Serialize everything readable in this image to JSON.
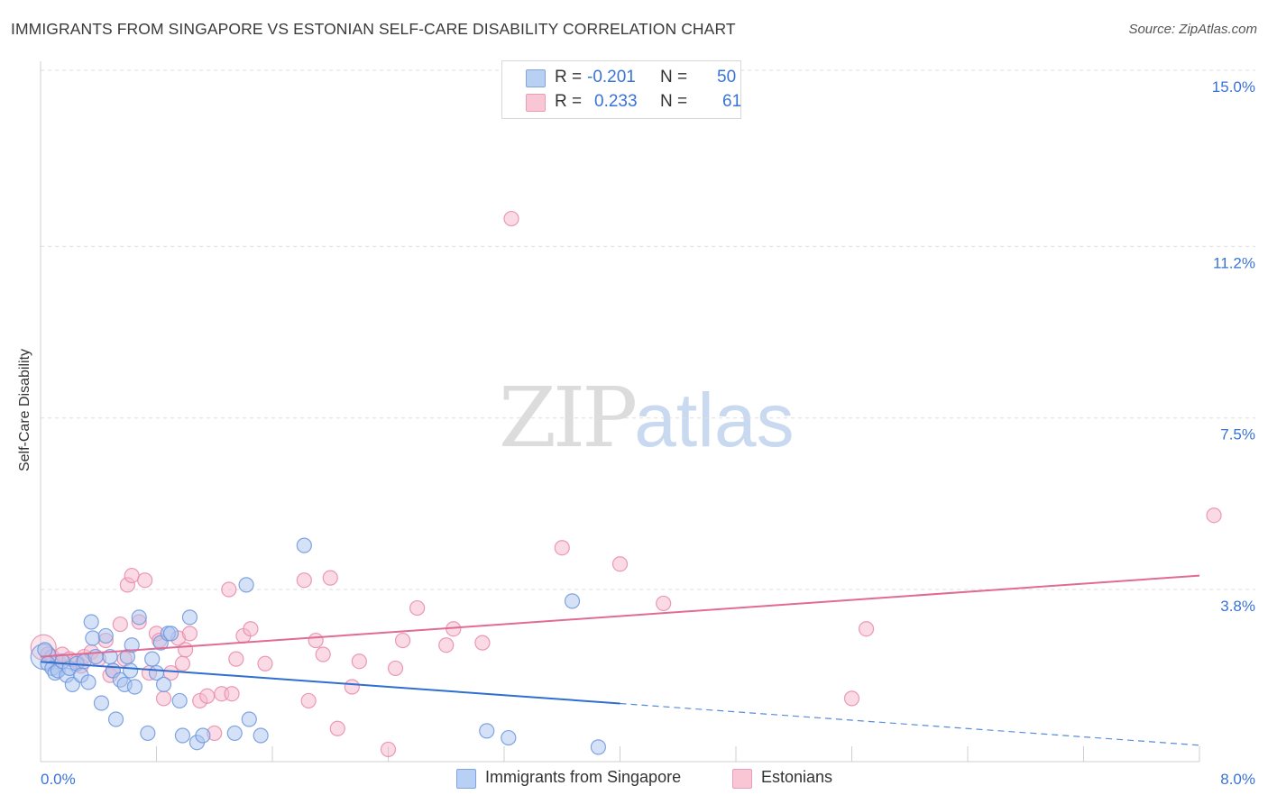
{
  "header": {
    "title": "IMMIGRANTS FROM SINGAPORE VS ESTONIAN SELF-CARE DISABILITY CORRELATION CHART",
    "source": "Source: ZipAtlas.com"
  },
  "legend": {
    "r_label": "R =",
    "n_label": "N =",
    "series1": {
      "r": "-0.201",
      "n": "50"
    },
    "series2": {
      "r": "0.233",
      "n": "61"
    }
  },
  "watermark": {
    "zip": "ZIP",
    "atlas": "atlas"
  },
  "colors": {
    "blue_fill": "#a9c4f0",
    "blue_stroke": "#6c97dc",
    "blue_line": "#2e6fd0",
    "pink_fill": "#f6b8cc",
    "pink_stroke": "#e88aa8",
    "pink_line": "#e06b96",
    "tick_label": "#3a73d6",
    "grid": "#dedede"
  },
  "chart_data": {
    "type": "scatter",
    "title": "IMMIGRANTS FROM SINGAPORE VS ESTONIAN SELF-CARE DISABILITY CORRELATION CHART",
    "xlabel": "",
    "ylabel": "Self-Care Disability",
    "xlim": [
      0,
      8
    ],
    "ylim": [
      0,
      15.5
    ],
    "x_tick_labels": [
      "0.0%",
      "8.0%"
    ],
    "y_ticks": [
      3.8,
      7.5,
      11.2,
      15.0
    ],
    "y_tick_labels": [
      "3.8%",
      "7.5%",
      "11.2%",
      "15.0%"
    ],
    "grid": true,
    "legend_position": "top-center",
    "series": [
      {
        "name": "Immigrants from Singapore",
        "color": "blue",
        "r": -0.201,
        "n": 50,
        "trend": {
          "x0": 0.0,
          "y0": 2.24,
          "x1": 4.0,
          "y1": 1.34,
          "dash_to_x": 8.0,
          "dash_to_y": 0.44
        },
        "points": [
          [
            0.02,
            2.35
          ],
          [
            0.03,
            2.5
          ],
          [
            0.05,
            2.2
          ],
          [
            0.08,
            2.1
          ],
          [
            0.1,
            2.0
          ],
          [
            0.12,
            2.05
          ],
          [
            0.15,
            2.25
          ],
          [
            0.18,
            1.95
          ],
          [
            0.2,
            2.1
          ],
          [
            0.22,
            1.75
          ],
          [
            0.25,
            2.2
          ],
          [
            0.28,
            1.95
          ],
          [
            0.3,
            2.25
          ],
          [
            0.33,
            1.8
          ],
          [
            0.36,
            2.75
          ],
          [
            0.38,
            2.35
          ],
          [
            0.42,
            1.35
          ],
          [
            0.45,
            2.8
          ],
          [
            0.48,
            2.35
          ],
          [
            0.5,
            2.05
          ],
          [
            0.52,
            1.0
          ],
          [
            0.55,
            1.85
          ],
          [
            0.58,
            1.75
          ],
          [
            0.6,
            2.35
          ],
          [
            0.62,
            2.05
          ],
          [
            0.63,
            2.6
          ],
          [
            0.65,
            1.7
          ],
          [
            0.68,
            3.2
          ],
          [
            0.74,
            0.7
          ],
          [
            0.77,
            2.3
          ],
          [
            0.8,
            2.0
          ],
          [
            0.83,
            2.65
          ],
          [
            0.85,
            1.75
          ],
          [
            0.88,
            2.85
          ],
          [
            0.9,
            2.85
          ],
          [
            0.96,
            1.4
          ],
          [
            0.98,
            0.65
          ],
          [
            1.03,
            3.2
          ],
          [
            1.08,
            0.5
          ],
          [
            1.12,
            0.65
          ],
          [
            1.34,
            0.7
          ],
          [
            1.42,
            3.9
          ],
          [
            1.44,
            1.0
          ],
          [
            1.52,
            0.65
          ],
          [
            1.82,
            4.75
          ],
          [
            3.08,
            0.75
          ],
          [
            3.23,
            0.6
          ],
          [
            3.67,
            3.55
          ],
          [
            3.85,
            0.4
          ],
          [
            0.35,
            3.1
          ]
        ]
      },
      {
        "name": "Estonians",
        "color": "pink",
        "r": 0.233,
        "n": 61,
        "trend": {
          "x0": 0.0,
          "y0": 2.35,
          "x1": 8.0,
          "y1": 4.1
        },
        "points": [
          [
            0.02,
            2.55
          ],
          [
            0.05,
            2.4
          ],
          [
            0.08,
            2.35
          ],
          [
            0.12,
            2.25
          ],
          [
            0.15,
            2.4
          ],
          [
            0.2,
            2.3
          ],
          [
            0.25,
            2.25
          ],
          [
            0.28,
            2.15
          ],
          [
            0.3,
            2.35
          ],
          [
            0.35,
            2.45
          ],
          [
            0.4,
            2.3
          ],
          [
            0.45,
            2.7
          ],
          [
            0.48,
            1.95
          ],
          [
            0.5,
            2.05
          ],
          [
            0.55,
            3.05
          ],
          [
            0.58,
            2.3
          ],
          [
            0.6,
            3.9
          ],
          [
            0.63,
            4.1
          ],
          [
            0.68,
            3.1
          ],
          [
            0.72,
            4.0
          ],
          [
            0.75,
            2.0
          ],
          [
            0.8,
            2.85
          ],
          [
            0.82,
            2.7
          ],
          [
            0.85,
            1.45
          ],
          [
            0.9,
            2.0
          ],
          [
            0.95,
            2.75
          ],
          [
            0.98,
            2.2
          ],
          [
            1.0,
            2.5
          ],
          [
            1.03,
            2.85
          ],
          [
            1.1,
            1.4
          ],
          [
            1.15,
            1.5
          ],
          [
            1.2,
            0.7
          ],
          [
            1.25,
            1.55
          ],
          [
            1.3,
            3.8
          ],
          [
            1.32,
            1.55
          ],
          [
            1.35,
            2.3
          ],
          [
            1.4,
            2.8
          ],
          [
            1.45,
            2.95
          ],
          [
            1.55,
            2.2
          ],
          [
            1.82,
            4.0
          ],
          [
            1.85,
            1.4
          ],
          [
            1.9,
            2.7
          ],
          [
            1.95,
            2.4
          ],
          [
            2.0,
            4.05
          ],
          [
            2.05,
            0.8
          ],
          [
            2.15,
            1.7
          ],
          [
            2.2,
            2.25
          ],
          [
            2.4,
            0.35
          ],
          [
            2.45,
            2.1
          ],
          [
            2.5,
            2.7
          ],
          [
            2.6,
            3.4
          ],
          [
            2.8,
            2.6
          ],
          [
            2.85,
            2.95
          ],
          [
            3.05,
            2.65
          ],
          [
            3.25,
            11.8
          ],
          [
            3.6,
            4.7
          ],
          [
            4.0,
            4.35
          ],
          [
            4.3,
            3.5
          ],
          [
            5.6,
            1.45
          ],
          [
            5.7,
            2.95
          ],
          [
            8.1,
            5.4
          ]
        ]
      }
    ]
  },
  "bottom_legend": {
    "series1": "Immigrants from Singapore",
    "series2": "Estonians"
  }
}
